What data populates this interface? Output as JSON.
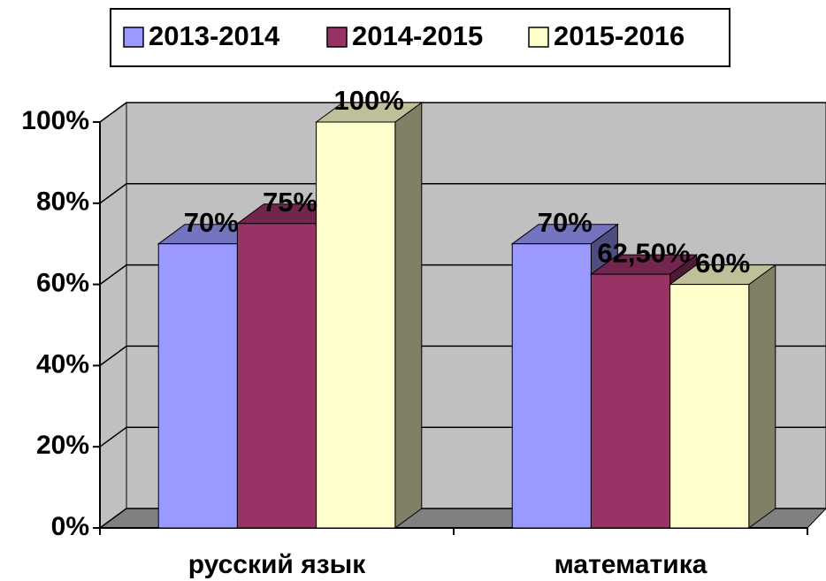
{
  "chart_data": {
    "type": "bar3d",
    "categories": [
      "русский язык",
      "математика"
    ],
    "series": [
      {
        "name": "2013-2014",
        "color": "#9999ff",
        "values": [
          70,
          70
        ],
        "value_labels": [
          "70%",
          "70%"
        ]
      },
      {
        "name": "2014-2015",
        "color": "#993366",
        "values": [
          75,
          62.5
        ],
        "value_labels": [
          "75%",
          "62,50%"
        ]
      },
      {
        "name": "2015-2016",
        "color": "#ffffcc",
        "values": [
          100,
          60
        ],
        "value_labels": [
          "100%",
          "60%"
        ]
      }
    ],
    "ylim": [
      0,
      100
    ],
    "yticks": [
      {
        "value": 0,
        "label": "0%"
      },
      {
        "value": 20,
        "label": "20%"
      },
      {
        "value": 40,
        "label": "40%"
      },
      {
        "value": 60,
        "label": "60%"
      },
      {
        "value": 80,
        "label": "80%"
      },
      {
        "value": 100,
        "label": "100%"
      }
    ],
    "grid": true,
    "legend": "top"
  }
}
